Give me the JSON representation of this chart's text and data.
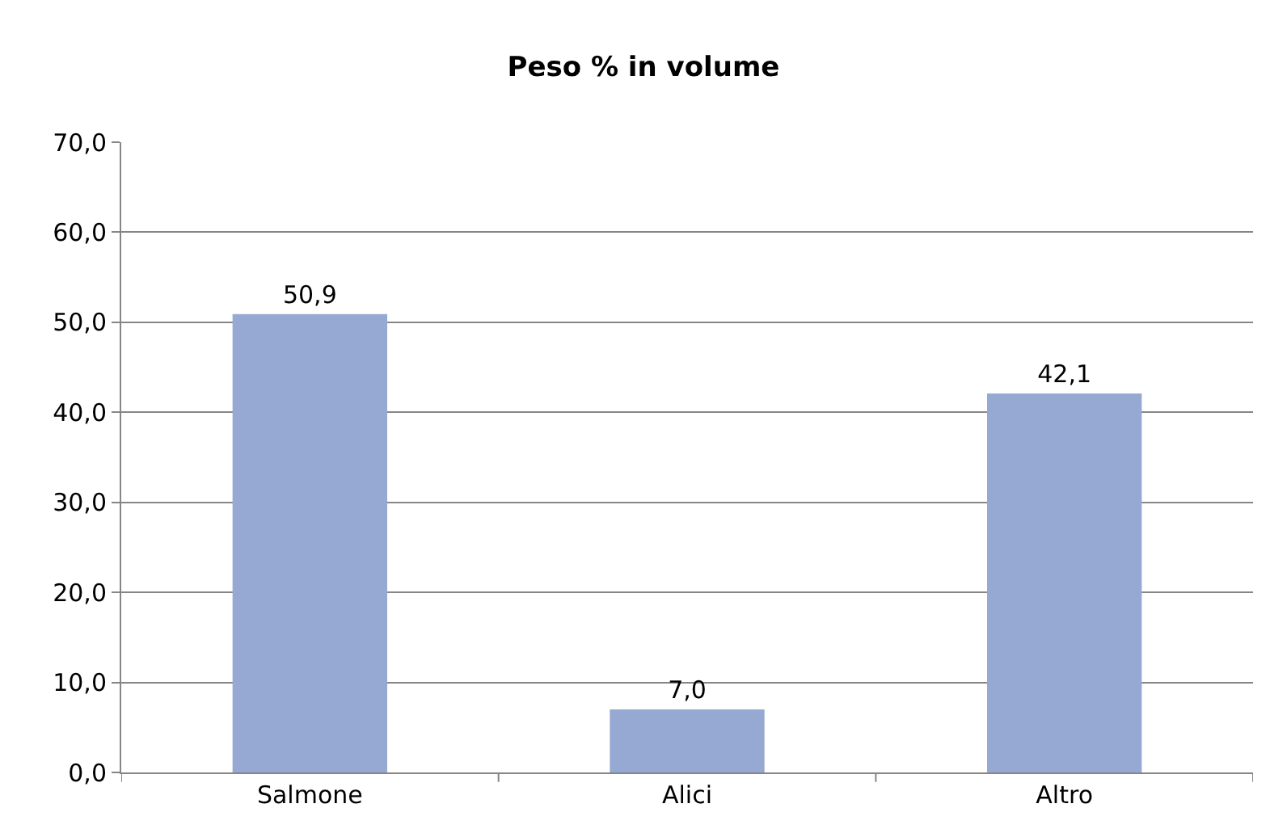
{
  "chart_data": {
    "type": "bar",
    "title": "Peso % in volume",
    "categories": [
      "Salmone",
      "Alici",
      "Altro"
    ],
    "values": [
      50.9,
      7.0,
      42.1
    ],
    "value_labels": [
      "50,9",
      "7,0",
      "42,1"
    ],
    "color": "#95a9d2",
    "ylim": [
      0,
      70
    ],
    "yticks": [
      {
        "value": 0,
        "label": "0,0"
      },
      {
        "value": 10,
        "label": "10,0"
      },
      {
        "value": 20,
        "label": "20,0"
      },
      {
        "value": 30,
        "label": "30,0"
      },
      {
        "value": 40,
        "label": "40,0"
      },
      {
        "value": 50,
        "label": "50,0"
      },
      {
        "value": 60,
        "label": "60,0"
      },
      {
        "value": 70,
        "label": "70,0"
      }
    ],
    "grid": "y",
    "legend": false
  }
}
